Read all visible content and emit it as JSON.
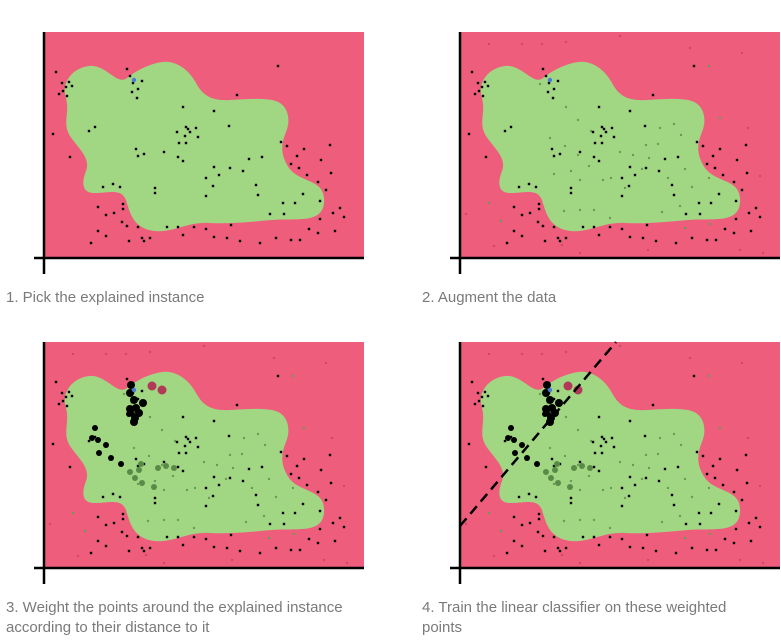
{
  "captions": {
    "step1": "1. Pick the explained instance",
    "step2": "2. Augment the data",
    "step3": "3. Weight the points around the explained instance according to their distance to it",
    "step4": "4. Train the linear classifier on these weighted points"
  },
  "colors": {
    "background_region": "#ef5d7d",
    "class_region": "#a1d682",
    "original_point": "#000000",
    "augmented_point": "#6a9a55",
    "augmented_point_outside": "#c94a66",
    "explained_instance": "#4a7bd6",
    "axis": "#000000",
    "decision_line": "#000000"
  }
}
